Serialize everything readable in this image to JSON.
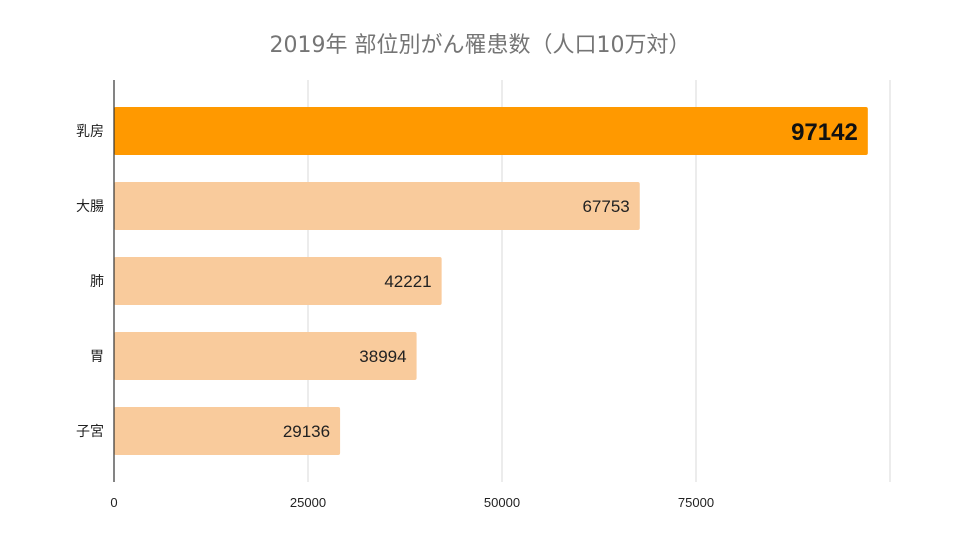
{
  "chart_data": {
    "type": "bar",
    "orientation": "horizontal",
    "title": "2019年 部位別がん罹患数（人口10万対）",
    "categories": [
      "乳房",
      "大腸",
      "肺",
      "胃",
      "子宮"
    ],
    "values": [
      97142,
      67753,
      42221,
      38994,
      29136
    ],
    "x_ticks": [
      "0",
      "25000",
      "50000",
      "75000"
    ],
    "xlim": [
      0,
      100000
    ],
    "grid": true,
    "data_labels": true,
    "colors": {
      "highlight": "#ff9900",
      "bar": "#f9cb9c",
      "grid": "#d9d9d9",
      "axis": "#333333"
    },
    "highlight_index": 0
  }
}
